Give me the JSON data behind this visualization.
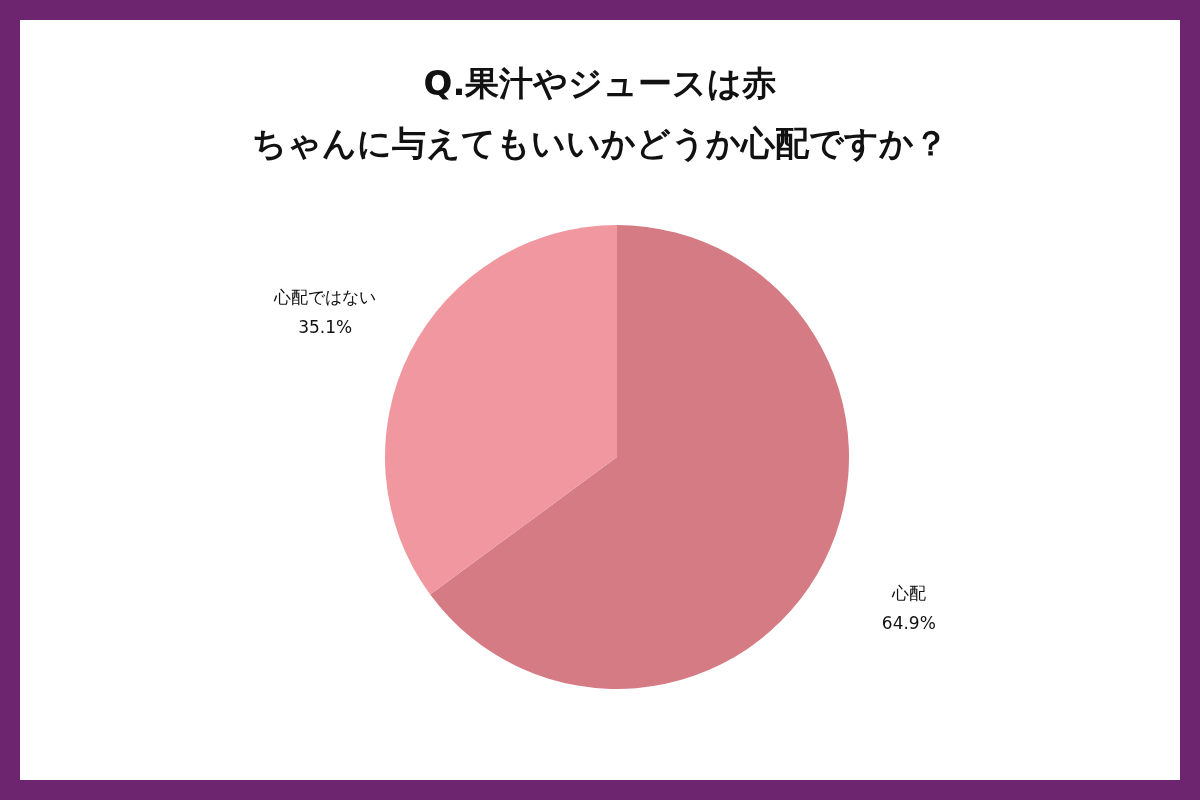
{
  "chart_data": {
    "type": "pie",
    "title": "Q.果汁やジュースは赤ちゃんに与えてもいいかどうか心配ですか？",
    "categories": [
      "心配",
      "心配ではない"
    ],
    "values": [
      64.9,
      35.1
    ],
    "colors": [
      "#d47b84",
      "#f0979f"
    ],
    "value_labels": [
      "64.9%",
      "35.1%"
    ]
  }
}
